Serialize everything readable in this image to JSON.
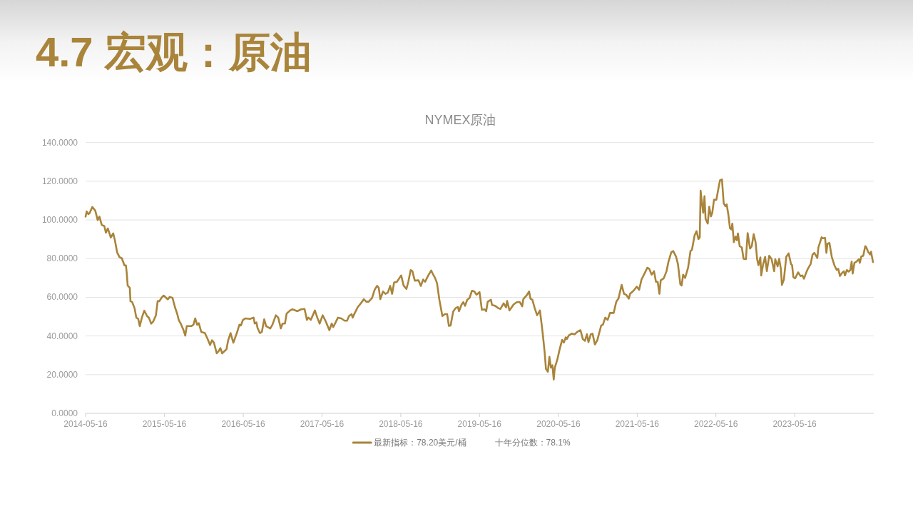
{
  "chart_data": {
    "type": "line",
    "title": "4.7 宏观：原油",
    "subtitle": "NYMEX原油",
    "x": [
      "2014-05-16",
      "2014-05-21",
      "2014-05-29",
      "2014-06-04",
      "2014-06-16",
      "2014-06-30",
      "2014-07-11",
      "2014-07-19",
      "2014-07-30",
      "2014-08-11",
      "2014-08-18",
      "2014-08-27",
      "2014-09-10",
      "2014-09-21",
      "2014-09-29",
      "2014-10-09",
      "2014-10-20",
      "2014-10-31",
      "2014-11-12",
      "2014-11-19",
      "2014-11-23",
      "2014-11-27",
      "2014-12-07",
      "2014-12-10",
      "2014-12-18",
      "2014-12-29",
      "2015-01-06",
      "2015-01-15",
      "2015-01-22",
      "2015-02-01",
      "2015-02-12",
      "2015-02-26",
      "2015-03-05",
      "2015-03-16",
      "2015-03-26",
      "2015-04-07",
      "2015-04-15",
      "2015-04-23",
      "2015-05-04",
      "2015-05-13",
      "2015-05-23",
      "2015-06-01",
      "2015-06-10",
      "2015-06-23",
      "2015-07-04",
      "2015-07-15",
      "2015-07-22",
      "2015-07-31",
      "2015-08-12",
      "2015-08-21",
      "2015-08-28",
      "2015-09-18",
      "2015-09-28",
      "2015-10-06",
      "2015-10-15",
      "2015-10-23",
      "2015-11-03",
      "2015-11-20",
      "2015-12-03",
      "2015-12-14",
      "2015-12-23",
      "2016-01-01",
      "2016-01-14",
      "2016-01-23",
      "2016-01-31",
      "2016-02-08",
      "2016-02-28",
      "2016-03-07",
      "2016-03-18",
      "2016-03-31",
      "2016-04-16",
      "2016-04-28",
      "2016-05-05",
      "2016-05-14",
      "2016-05-25",
      "2016-06-16",
      "2016-07-03",
      "2016-07-08",
      "2016-07-16",
      "2016-07-21",
      "2016-08-01",
      "2016-08-10",
      "2016-08-21",
      "2016-08-30",
      "2016-09-18",
      "2016-09-28",
      "2016-10-14",
      "2016-10-25",
      "2016-11-06",
      "2016-11-14",
      "2016-11-25",
      "2016-12-03",
      "2016-12-19",
      "2016-12-30",
      "2017-01-22",
      "2017-02-08",
      "2017-02-24",
      "2017-03-07",
      "2017-03-14",
      "2017-03-25",
      "2017-04-13",
      "2017-04-24",
      "2017-05-05",
      "2017-05-19",
      "2017-06-02",
      "2017-06-19",
      "2017-06-30",
      "2017-07-07",
      "2017-07-18",
      "2017-07-29",
      "2017-08-13",
      "2017-08-29",
      "2017-09-09",
      "2017-09-18",
      "2017-09-30",
      "2017-10-05",
      "2017-10-15",
      "2017-10-29",
      "2017-11-12",
      "2017-11-26",
      "2017-12-07",
      "2017-12-18",
      "2018-01-03",
      "2018-01-15",
      "2018-01-26",
      "2018-02-03",
      "2018-02-10",
      "2018-02-23",
      "2018-03-06",
      "2018-03-17",
      "2018-03-28",
      "2018-04-06",
      "2018-04-15",
      "2018-04-28",
      "2018-05-09",
      "2018-05-18",
      "2018-05-29",
      "2018-06-11",
      "2018-06-20",
      "2018-07-01",
      "2018-07-09",
      "2018-07-20",
      "2018-08-06",
      "2018-08-17",
      "2018-08-28",
      "2018-09-06",
      "2018-09-19",
      "2018-10-04",
      "2018-10-12",
      "2018-10-22",
      "2018-10-31",
      "2018-11-11",
      "2018-11-25",
      "2018-12-06",
      "2018-12-17",
      "2018-12-25",
      "2019-01-02",
      "2019-01-14",
      "2019-01-25",
      "2019-02-05",
      "2019-02-10",
      "2019-02-22",
      "2019-03-02",
      "2019-03-10",
      "2019-03-20",
      "2019-03-31",
      "2019-04-11",
      "2019-04-22",
      "2019-05-02",
      "2019-05-16",
      "2019-05-27",
      "2019-06-09",
      "2019-06-16",
      "2019-06-23",
      "2019-07-08",
      "2019-07-13",
      "2019-07-27",
      "2019-08-11",
      "2019-08-21",
      "2019-09-05",
      "2019-09-16",
      "2019-09-21",
      "2019-10-02",
      "2019-10-13",
      "2019-10-21",
      "2019-11-05",
      "2019-11-19",
      "2019-11-30",
      "2019-12-05",
      "2019-12-22",
      "2020-01-01",
      "2020-01-07",
      "2020-01-16",
      "2020-01-27",
      "2020-02-07",
      "2020-02-20",
      "2020-02-29",
      "2020-03-05",
      "2020-03-13",
      "2020-03-19",
      "2020-03-28",
      "2020-04-04",
      "2020-04-11",
      "2020-04-18",
      "2020-04-24",
      "2020-04-29",
      "2020-05-11",
      "2020-05-21",
      "2020-06-02",
      "2020-06-10",
      "2020-06-19",
      "2020-06-24",
      "2020-07-03",
      "2020-07-16",
      "2020-07-30",
      "2020-08-11",
      "2020-08-26",
      "2020-09-06",
      "2020-09-16",
      "2020-09-25",
      "2020-10-02",
      "2020-10-13",
      "2020-10-21",
      "2020-11-01",
      "2020-11-12",
      "2020-11-30",
      "2020-12-08",
      "2020-12-19",
      "2020-12-30",
      "2021-01-10",
      "2021-01-27",
      "2021-02-08",
      "2021-02-18",
      "2021-03-05",
      "2021-03-16",
      "2021-03-27",
      "2021-04-07",
      "2021-04-13",
      "2021-04-29",
      "2021-05-14",
      "2021-05-25",
      "2021-06-05",
      "2021-06-19",
      "2021-07-02",
      "2021-07-11",
      "2021-07-22",
      "2021-08-02",
      "2021-08-11",
      "2021-08-19",
      "2021-08-27",
      "2021-09-02",
      "2021-09-16",
      "2021-09-29",
      "2021-10-08",
      "2021-10-21",
      "2021-10-30",
      "2021-11-12",
      "2021-11-21",
      "2021-12-02",
      "2021-12-08",
      "2021-12-15",
      "2021-12-24",
      "2022-01-07",
      "2022-01-18",
      "2022-01-25",
      "2022-02-06",
      "2022-02-15",
      "2022-02-24",
      "2022-03-02",
      "2022-03-06",
      "2022-03-13",
      "2022-03-18",
      "2022-03-24",
      "2022-03-29",
      "2022-04-08",
      "2022-04-15",
      "2022-04-23",
      "2022-04-29",
      "2022-05-07",
      "2022-05-18",
      "2022-05-29",
      "2022-06-04",
      "2022-06-13",
      "2022-06-21",
      "2022-06-29",
      "2022-07-05",
      "2022-07-13",
      "2022-07-20",
      "2022-07-27",
      "2022-07-31",
      "2022-08-07",
      "2022-08-15",
      "2022-08-21",
      "2022-08-26",
      "2022-09-03",
      "2022-09-13",
      "2022-09-21",
      "2022-10-02",
      "2022-10-10",
      "2022-10-21",
      "2022-10-29",
      "2022-11-07",
      "2022-11-16",
      "2022-11-23",
      "2022-11-29",
      "2022-12-08",
      "2022-12-12",
      "2022-12-21",
      "2022-12-30",
      "2023-01-07",
      "2023-01-18",
      "2023-01-29",
      "2023-02-10",
      "2023-02-15",
      "2023-02-26",
      "2023-03-05",
      "2023-03-13",
      "2023-03-18",
      "2023-03-27",
      "2023-04-07",
      "2023-04-18",
      "2023-04-29",
      "2023-05-04",
      "2023-05-10",
      "2023-05-18",
      "2023-06-01",
      "2023-06-12",
      "2023-06-21",
      "2023-06-28",
      "2023-07-07",
      "2023-07-16",
      "2023-07-29",
      "2023-08-07",
      "2023-08-15",
      "2023-08-29",
      "2023-09-03",
      "2023-09-18",
      "2023-09-23",
      "2023-10-04",
      "2023-10-10",
      "2023-10-15",
      "2023-10-24",
      "2023-11-04",
      "2023-11-16",
      "2023-11-27",
      "2023-12-04",
      "2023-12-12",
      "2023-12-21",
      "2023-12-30",
      "2024-01-04",
      "2024-01-13",
      "2024-01-21",
      "2024-01-29",
      "2024-02-04",
      "2024-02-09",
      "2024-02-17",
      "2024-02-26",
      "2024-03-08",
      "2024-03-13",
      "2024-03-20",
      "2024-03-29",
      "2024-04-07",
      "2024-04-11",
      "2024-04-21",
      "2024-04-30",
      "2024-05-04",
      "2024-05-13"
    ],
    "series": [
      {
        "name": "最新指标：78.20美元/桶",
        "color": "#a9843a",
        "values": [
          101.7,
          104.4,
          103.0,
          103.6,
          106.7,
          104.8,
          99.9,
          101.7,
          97.4,
          96.8,
          93.4,
          95.6,
          90.9,
          93.1,
          89.4,
          83.3,
          80.8,
          80.2,
          76.5,
          76.5,
          72.2,
          66.1,
          64.8,
          58.0,
          57.5,
          54.4,
          49.5,
          48.8,
          45.1,
          49.5,
          53.1,
          50.1,
          49.5,
          46.4,
          47.6,
          50.7,
          58.0,
          58.0,
          59.9,
          60.9,
          59.9,
          58.9,
          60.2,
          59.7,
          55.0,
          51.3,
          48.2,
          46.4,
          43.3,
          40.2,
          45.1,
          45.1,
          45.8,
          49.1,
          45.8,
          46.6,
          42.1,
          41.5,
          38.4,
          35.3,
          37.8,
          36.5,
          31.0,
          32.2,
          33.7,
          31.0,
          33.1,
          37.8,
          41.5,
          36.5,
          41.5,
          45.8,
          45.4,
          48.2,
          49.1,
          48.8,
          49.5,
          46.4,
          47.0,
          44.2,
          41.5,
          42.1,
          48.6,
          45.1,
          43.9,
          45.8,
          50.7,
          49.5,
          43.9,
          46.4,
          46.4,
          51.6,
          53.2,
          53.8,
          52.8,
          53.8,
          54.0,
          48.3,
          49.5,
          48.3,
          53.2,
          49.5,
          46.4,
          50.7,
          47.6,
          43.0,
          46.4,
          44.6,
          47.0,
          49.5,
          49.1,
          47.9,
          47.9,
          50.3,
          51.3,
          49.5,
          51.9,
          55.0,
          56.9,
          59.0,
          57.7,
          57.7,
          59.7,
          63.9,
          65.9,
          64.9,
          59.0,
          63.0,
          61.8,
          62.4,
          65.9,
          61.8,
          67.6,
          68.0,
          69.8,
          71.3,
          66.1,
          64.3,
          68.0,
          74.1,
          73.5,
          68.6,
          68.8,
          65.9,
          69.2,
          68.0,
          71.0,
          73.9,
          72.0,
          70.0,
          67.3,
          58.7,
          50.3,
          51.3,
          51.3,
          45.2,
          45.4,
          52.6,
          54.4,
          55.0,
          52.8,
          56.3,
          57.5,
          55.6,
          58.7,
          59.7,
          63.4,
          63.0,
          61.4,
          62.7,
          53.5,
          53.8,
          52.8,
          57.7,
          58.7,
          56.0,
          55.6,
          54.4,
          54.0,
          56.9,
          54.8,
          58.1,
          53.2,
          55.0,
          56.3,
          57.5,
          57.5,
          55.3,
          59.0,
          61.2,
          63.0,
          59.3,
          58.7,
          54.4,
          50.7,
          53.2,
          45.2,
          40.3,
          31.6,
          23.0,
          21.5,
          29.2,
          23.6,
          24.9,
          17.5,
          23.6,
          27.9,
          32.9,
          38.0,
          36.6,
          39.3,
          38.4,
          40.3,
          41.2,
          40.9,
          42.1,
          43.0,
          38.4,
          37.5,
          40.9,
          36.8,
          40.9,
          41.2,
          35.6,
          37.8,
          45.4,
          45.8,
          49.5,
          48.3,
          51.9,
          51.9,
          57.7,
          59.3,
          66.4,
          61.8,
          61.2,
          59.3,
          61.8,
          63.4,
          65.5,
          63.9,
          69.2,
          72.3,
          75.3,
          74.7,
          71.7,
          73.5,
          68.0,
          68.0,
          61.8,
          68.8,
          69.8,
          73.5,
          78.4,
          83.3,
          83.9,
          81.1,
          77.1,
          66.7,
          66.1,
          71.7,
          70.0,
          75.3,
          83.9,
          84.6,
          92.0,
          94.2,
          90.1,
          91.0,
          115.1,
          108.0,
          103.7,
          112.3,
          100.6,
          98.1,
          106.8,
          101.8,
          103.7,
          110.4,
          110.4,
          117.2,
          120.5,
          120.9,
          108.6,
          107.1,
          108.0,
          102.4,
          95.7,
          95.1,
          98.1,
          88.5,
          91.4,
          89.5,
          93.0,
          86.4,
          85.8,
          79.9,
          79.7,
          93.2,
          85.2,
          86.4,
          92.6,
          88.3,
          79.7,
          76.6,
          80.6,
          71.3,
          77.2,
          80.9,
          73.5,
          81.5,
          79.7,
          73.5,
          79.7,
          76.0,
          79.9,
          74.7,
          66.4,
          69.2,
          80.9,
          82.7,
          77.2,
          76.6,
          70.4,
          69.8,
          72.9,
          71.0,
          71.3,
          69.6,
          72.3,
          74.7,
          77.2,
          82.1,
          83.0,
          80.3,
          85.8,
          91.0,
          90.5,
          90.7,
          83.0,
          87.7,
          88.1,
          80.9,
          76.6,
          74.1,
          74.7,
          71.0,
          72.5,
          73.5,
          71.3,
          74.1,
          73.3,
          74.1,
          78.4,
          72.3,
          77.8,
          78.4,
          79.7,
          77.8,
          81.1,
          81.5,
          86.4,
          86.1,
          83.4,
          82.1,
          83.6,
          78.2
        ]
      }
    ],
    "xlim": [
      "2014-05-16",
      "2024-05-16"
    ],
    "xticks": [
      {
        "value": "2014-05-16",
        "label": "2014-05-16"
      },
      {
        "value": "2015-05-16",
        "label": "2015-05-16"
      },
      {
        "value": "2016-05-16",
        "label": "2016-05-16"
      },
      {
        "value": "2017-05-16",
        "label": "2017-05-16"
      },
      {
        "value": "2018-05-16",
        "label": "2018-05-16"
      },
      {
        "value": "2019-05-16",
        "label": "2019-05-16"
      },
      {
        "value": "2020-05-16",
        "label": "2020-05-16"
      },
      {
        "value": "2021-05-16",
        "label": "2021-05-16"
      },
      {
        "value": "2022-05-16",
        "label": "2022-05-16"
      },
      {
        "value": "2023-05-16",
        "label": "2023-05-16"
      }
    ],
    "ylim": [
      0,
      140
    ],
    "yticks": [
      {
        "value": 0,
        "label": "0.0000"
      },
      {
        "value": 20,
        "label": "20.0000"
      },
      {
        "value": 40,
        "label": "40.0000"
      },
      {
        "value": 60,
        "label": "60.0000"
      },
      {
        "value": 80,
        "label": "80.0000"
      },
      {
        "value": 100,
        "label": "100.0000"
      },
      {
        "value": 120,
        "label": "120.0000"
      },
      {
        "value": 140,
        "label": "140.0000"
      }
    ],
    "grid": "y",
    "legend": "bottom",
    "line_style": "solid",
    "annotations": [
      "十年分位数：78.1%"
    ]
  }
}
